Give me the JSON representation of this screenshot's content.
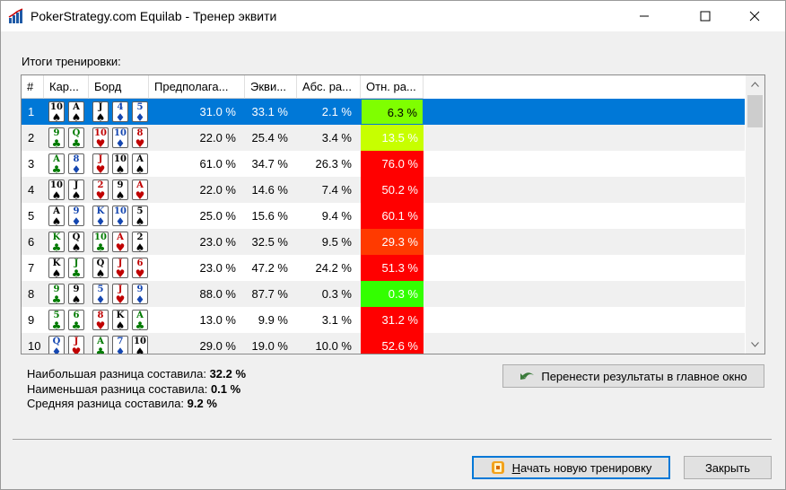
{
  "window": {
    "title": "PokerStrategy.com Equilab - Тренер эквити"
  },
  "section_label": "Итоги тренировки:",
  "columns": [
    "#",
    "Кар...",
    "Борд",
    "Предполага...",
    "Экви...",
    "Абс. ра...",
    "Отн. ра..."
  ],
  "rows": [
    {
      "n": "1",
      "hand": [
        [
          "10",
          "spade"
        ],
        [
          "A",
          "spade"
        ]
      ],
      "board": [
        [
          "J",
          "spade"
        ],
        [
          "4",
          "diamond"
        ],
        [
          "5",
          "diamond"
        ]
      ],
      "guess": "31.0 %",
      "equity": "33.1 %",
      "abs": "2.1 %",
      "rel": "6.3 %",
      "rel_color": "#7fff00"
    },
    {
      "n": "2",
      "hand": [
        [
          "9",
          "club"
        ],
        [
          "Q",
          "club"
        ]
      ],
      "board": [
        [
          "10",
          "heart"
        ],
        [
          "10",
          "diamond"
        ],
        [
          "8",
          "heart"
        ]
      ],
      "guess": "22.0 %",
      "equity": "25.4 %",
      "abs": "3.4 %",
      "rel": "13.5 %",
      "rel_color": "#c7ff00"
    },
    {
      "n": "3",
      "hand": [
        [
          "A",
          "club"
        ],
        [
          "8",
          "diamond"
        ]
      ],
      "board": [
        [
          "J",
          "heart"
        ],
        [
          "10",
          "spade"
        ],
        [
          "A",
          "spade"
        ]
      ],
      "guess": "61.0 %",
      "equity": "34.7 %",
      "abs": "26.3 %",
      "rel": "76.0 %",
      "rel_color": "#ff0000"
    },
    {
      "n": "4",
      "hand": [
        [
          "10",
          "spade"
        ],
        [
          "J",
          "spade"
        ]
      ],
      "board": [
        [
          "2",
          "heart"
        ],
        [
          "9",
          "spade"
        ],
        [
          "A",
          "heart"
        ]
      ],
      "guess": "22.0 %",
      "equity": "14.6 %",
      "abs": "7.4 %",
      "rel": "50.2 %",
      "rel_color": "#ff0000"
    },
    {
      "n": "5",
      "hand": [
        [
          "A",
          "spade"
        ],
        [
          "9",
          "diamond"
        ]
      ],
      "board": [
        [
          "K",
          "diamond"
        ],
        [
          "10",
          "diamond"
        ],
        [
          "5",
          "spade"
        ]
      ],
      "guess": "25.0 %",
      "equity": "15.6 %",
      "abs": "9.4 %",
      "rel": "60.1 %",
      "rel_color": "#ff0000"
    },
    {
      "n": "6",
      "hand": [
        [
          "K",
          "club"
        ],
        [
          "Q",
          "spade"
        ]
      ],
      "board": [
        [
          "10",
          "club"
        ],
        [
          "A",
          "heart"
        ],
        [
          "2",
          "spade"
        ]
      ],
      "guess": "23.0 %",
      "equity": "32.5 %",
      "abs": "9.5 %",
      "rel": "29.3 %",
      "rel_color": "#ff3a00"
    },
    {
      "n": "7",
      "hand": [
        [
          "K",
          "spade"
        ],
        [
          "J",
          "club"
        ]
      ],
      "board": [
        [
          "Q",
          "spade"
        ],
        [
          "J",
          "heart"
        ],
        [
          "6",
          "heart"
        ]
      ],
      "guess": "23.0 %",
      "equity": "47.2 %",
      "abs": "24.2 %",
      "rel": "51.3 %",
      "rel_color": "#ff0000"
    },
    {
      "n": "8",
      "hand": [
        [
          "9",
          "club"
        ],
        [
          "9",
          "spade"
        ]
      ],
      "board": [
        [
          "5",
          "diamond"
        ],
        [
          "J",
          "heart"
        ],
        [
          "9",
          "diamond"
        ]
      ],
      "guess": "88.0 %",
      "equity": "87.7 %",
      "abs": "0.3 %",
      "rel": "0.3 %",
      "rel_color": "#33ff00"
    },
    {
      "n": "9",
      "hand": [
        [
          "5",
          "club"
        ],
        [
          "6",
          "club"
        ]
      ],
      "board": [
        [
          "8",
          "heart"
        ],
        [
          "K",
          "spade"
        ],
        [
          "A",
          "club"
        ]
      ],
      "guess": "13.0 %",
      "equity": "9.9 %",
      "abs": "3.1 %",
      "rel": "31.2 %",
      "rel_color": "#ff0000"
    },
    {
      "n": "10",
      "hand": [
        [
          "Q",
          "diamond"
        ],
        [
          "J",
          "heart"
        ]
      ],
      "board": [
        [
          "A",
          "club"
        ],
        [
          "7",
          "diamond"
        ],
        [
          "10",
          "spade"
        ]
      ],
      "guess": "29.0 %",
      "equity": "19.0 %",
      "abs": "10.0 %",
      "rel": "52.6 %",
      "rel_color": "#ff0000"
    }
  ],
  "stats": {
    "max_label": "Наибольшая разница составила:",
    "max_value": "32.2 %",
    "min_label": "Наименьшая разница составила:",
    "min_value": "0.1 %",
    "avg_label": "Средняя разница составила:",
    "avg_value": "9.2 %"
  },
  "buttons": {
    "transfer": "Перенести результаты в главное окно",
    "new_training_first": "Н",
    "new_training_rest": "ачать новую тренировку",
    "close": "Закрыть"
  },
  "icons": {
    "app": "equilab-icon",
    "transfer": "undo-arrow-icon",
    "new": "trainer-icon"
  }
}
